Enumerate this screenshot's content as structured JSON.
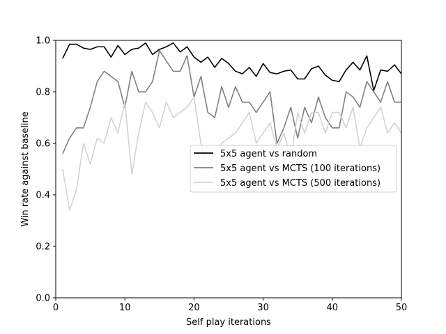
{
  "chart_data": {
    "type": "line",
    "xlabel": "Self play iterations",
    "ylabel": "Win rate against baseline",
    "xlim": [
      0,
      50
    ],
    "ylim": [
      0,
      1.0
    ],
    "x_ticks": [
      0,
      10,
      20,
      30,
      40,
      50
    ],
    "y_ticks": [
      0.0,
      0.2,
      0.4,
      0.6,
      0.8,
      1.0
    ],
    "y_tick_labels": [
      "0.0",
      "0.2",
      "0.4",
      "0.6",
      "0.8",
      "1.0"
    ],
    "grid": false,
    "legend_position": "center-right",
    "x": [
      1,
      2,
      3,
      4,
      5,
      6,
      7,
      8,
      9,
      10,
      11,
      12,
      13,
      14,
      15,
      16,
      17,
      18,
      19,
      20,
      21,
      22,
      23,
      24,
      25,
      26,
      27,
      28,
      29,
      30,
      31,
      32,
      33,
      34,
      35,
      36,
      37,
      38,
      39,
      40,
      41,
      42,
      43,
      44,
      45,
      46,
      47,
      48,
      49,
      50
    ],
    "series": [
      {
        "name": "5x5 agent vs random",
        "color": "#000000",
        "values": [
          0.93,
          0.985,
          0.985,
          0.97,
          0.965,
          0.975,
          0.975,
          0.935,
          0.98,
          0.945,
          0.965,
          0.97,
          0.99,
          0.945,
          0.965,
          0.975,
          0.99,
          0.955,
          0.975,
          0.935,
          0.915,
          0.935,
          0.895,
          0.93,
          0.91,
          0.88,
          0.87,
          0.895,
          0.86,
          0.91,
          0.875,
          0.87,
          0.88,
          0.885,
          0.85,
          0.85,
          0.89,
          0.9,
          0.865,
          0.845,
          0.84,
          0.885,
          0.915,
          0.885,
          0.94,
          0.805,
          0.885,
          0.88,
          0.905,
          0.87
        ]
      },
      {
        "name": "5x5 agent vs MCTS (100 iterations)",
        "color": "#808080",
        "values": [
          0.56,
          0.62,
          0.66,
          0.66,
          0.74,
          0.84,
          0.88,
          0.86,
          0.84,
          0.74,
          0.88,
          0.8,
          0.8,
          0.84,
          0.96,
          0.92,
          0.88,
          0.88,
          0.94,
          0.78,
          0.86,
          0.72,
          0.7,
          0.82,
          0.74,
          0.82,
          0.76,
          0.76,
          0.72,
          0.76,
          0.8,
          0.6,
          0.66,
          0.74,
          0.62,
          0.74,
          0.68,
          0.78,
          0.7,
          0.66,
          0.66,
          0.8,
          0.78,
          0.74,
          0.84,
          0.8,
          0.76,
          0.84,
          0.76,
          0.76
        ]
      },
      {
        "name": "5x5 agent vs MCTS (500 iterations)",
        "color": "#d3d3d3",
        "values": [
          0.5,
          0.34,
          0.42,
          0.6,
          0.52,
          0.62,
          0.6,
          0.7,
          0.64,
          0.76,
          0.48,
          0.64,
          0.76,
          0.72,
          0.66,
          0.76,
          0.7,
          0.72,
          0.74,
          0.78,
          0.6,
          0.5,
          0.56,
          0.6,
          0.62,
          0.64,
          0.68,
          0.72,
          0.6,
          0.64,
          0.68,
          0.58,
          0.64,
          0.54,
          0.72,
          0.64,
          0.72,
          0.72,
          0.64,
          0.72,
          0.72,
          0.66,
          0.74,
          0.58,
          0.66,
          0.7,
          0.74,
          0.64,
          0.68,
          0.64
        ]
      }
    ]
  }
}
